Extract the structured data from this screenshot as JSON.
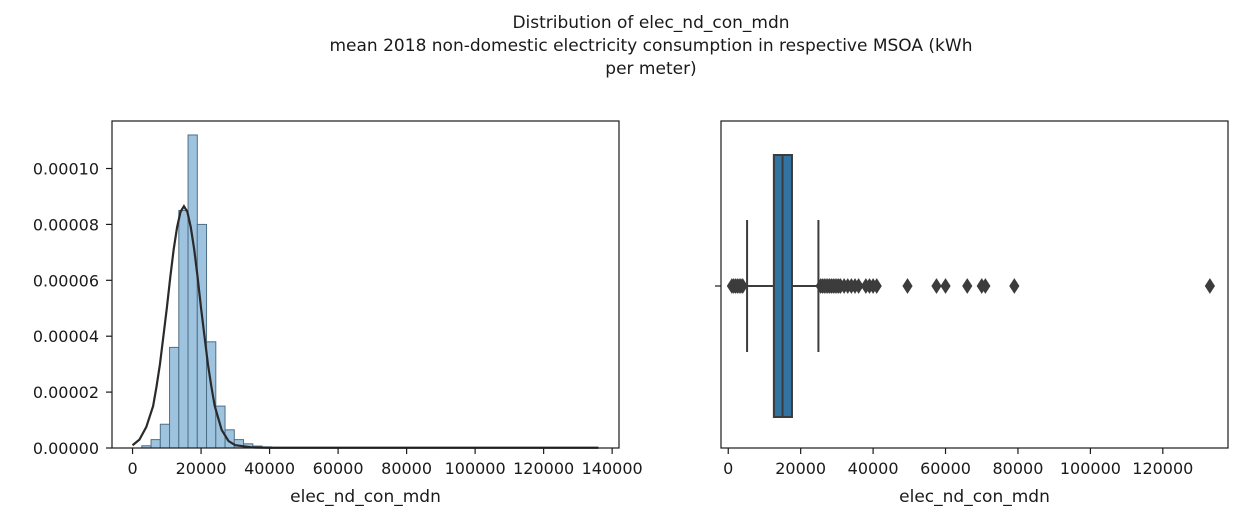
{
  "figure": {
    "title_lines": [
      "Distribution of elec_nd_con_mdn",
      "mean 2018 non-domestic electricity consumption in respective MSOA (kWh",
      "per meter)"
    ]
  },
  "chart_data": [
    {
      "type": "bar",
      "subtype": "histogram-with-density",
      "xlabel": "elec_nd_con_mdn",
      "ylabel": "",
      "xlim": [
        -6000,
        142000
      ],
      "ylim": [
        0,
        0.000117
      ],
      "xticks": [
        0,
        20000,
        40000,
        60000,
        80000,
        100000,
        120000,
        140000
      ],
      "xtick_labels": [
        "0",
        "20000",
        "40000",
        "60000",
        "80000",
        "100000",
        "120000",
        "140000"
      ],
      "yticks": [
        0,
        2e-05,
        4e-05,
        6e-05,
        8e-05,
        0.0001
      ],
      "ytick_labels": [
        "0.00000",
        "0.00002",
        "0.00004",
        "0.00006",
        "0.00008",
        "0.00010"
      ],
      "bins": {
        "start": 2700,
        "width": 2700,
        "values": [
          8e-07,
          3e-06,
          8.5e-06,
          3.6e-05,
          8.5e-05,
          0.000112,
          8e-05,
          3.8e-05,
          1.5e-05,
          6.5e-06,
          3e-06,
          1.5e-06,
          7e-07,
          4e-07,
          2e-07
        ]
      },
      "density": {
        "x": [
          0,
          2000,
          4000,
          6000,
          7000,
          8000,
          9000,
          10000,
          11000,
          12000,
          13000,
          14000,
          15000,
          16000,
          17000,
          18000,
          19000,
          20000,
          21000,
          22000,
          23000,
          24000,
          26000,
          28000,
          30000,
          35000,
          40000,
          60000,
          80000,
          100000,
          120000,
          136000
        ],
        "y": [
          1e-06,
          3e-06,
          7.5e-06,
          1.5e-05,
          2.2e-05,
          3e-05,
          4e-05,
          5e-05,
          6.1e-05,
          7.1e-05,
          7.9e-05,
          8.45e-05,
          8.65e-05,
          8.45e-05,
          7.9e-05,
          7.1e-05,
          6.1e-05,
          5e-05,
          4e-05,
          3e-05,
          2.2e-05,
          1.5e-05,
          6.5e-06,
          2.5e-06,
          1e-06,
          2e-07,
          1e-07,
          1e-07,
          1e-07,
          1e-07,
          1e-07,
          1e-07
        ]
      },
      "colors": {
        "bar_fill": "#9ec3df",
        "bar_edge": "#4f6f86",
        "density_line": "#2a2a2a"
      },
      "grid": false
    },
    {
      "type": "boxplot",
      "xlabel": "elec_nd_con_mdn",
      "xlim": [
        -2000,
        138000
      ],
      "xticks": [
        0,
        20000,
        40000,
        60000,
        80000,
        100000,
        120000
      ],
      "xtick_labels": [
        "0",
        "20000",
        "40000",
        "60000",
        "80000",
        "100000",
        "120000"
      ],
      "box": {
        "q1": 12600,
        "median": 15000,
        "q3": 17600,
        "whisker_low": 5200,
        "whisker_high": 24900
      },
      "outliers": [
        1000,
        1500,
        2000,
        2500,
        3000,
        3500,
        4000,
        25500,
        26000,
        26500,
        27000,
        27500,
        28000,
        28500,
        29000,
        29500,
        30000,
        30500,
        31000,
        32000,
        33000,
        34000,
        35000,
        36000,
        38000,
        39000,
        40000,
        41000,
        49500,
        57500,
        60000,
        66000,
        70000,
        71000,
        79000,
        133000
      ],
      "colors": {
        "box_fill": "#3274a1",
        "lines": "#3c3c3c"
      },
      "grid": false
    }
  ]
}
